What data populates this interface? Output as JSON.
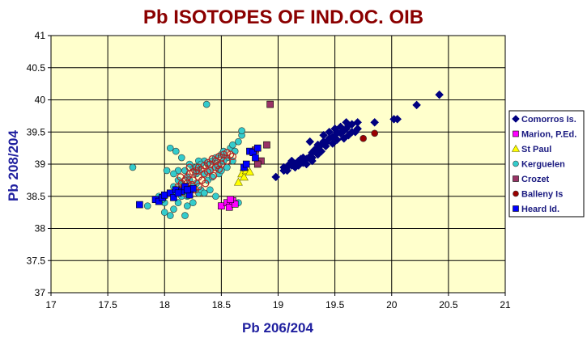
{
  "chart_data": {
    "type": "scatter",
    "title": "Pb ISOTOPES OF IND.OC. OIB",
    "xlabel": "Pb 206/204",
    "ylabel": "Pb 208/204",
    "xlim": [
      17,
      21
    ],
    "ylim": [
      37,
      41
    ],
    "x_ticks": [
      "17",
      "17.5",
      "18",
      "18.5",
      "19",
      "19.5",
      "20",
      "20.5",
      "21"
    ],
    "y_ticks": [
      "37",
      "37.5",
      "38",
      "38.5",
      "39",
      "39.5",
      "40",
      "40.5",
      "41"
    ],
    "grid": true,
    "legend_position": "right",
    "plot_background": "#ffffcc",
    "series": [
      {
        "name": "Comorros Is.",
        "marker": "diamond",
        "color": "#000080",
        "points": [
          [
            18.98,
            38.8
          ],
          [
            19.05,
            38.95
          ],
          [
            19.08,
            38.9
          ],
          [
            19.12,
            38.98
          ],
          [
            19.15,
            39.0
          ],
          [
            19.18,
            39.05
          ],
          [
            19.2,
            39.02
          ],
          [
            19.22,
            39.1
          ],
          [
            19.25,
            39.08
          ],
          [
            19.28,
            39.12
          ],
          [
            19.3,
            39.18
          ],
          [
            19.32,
            39.22
          ],
          [
            19.35,
            39.25
          ],
          [
            19.38,
            39.3
          ],
          [
            19.4,
            39.35
          ],
          [
            19.42,
            39.33
          ],
          [
            19.45,
            39.4
          ],
          [
            19.48,
            39.42
          ],
          [
            19.5,
            39.45
          ],
          [
            19.52,
            39.5
          ],
          [
            19.55,
            39.48
          ],
          [
            19.58,
            39.52
          ],
          [
            19.6,
            39.55
          ],
          [
            19.62,
            39.6
          ],
          [
            19.65,
            39.62
          ],
          [
            19.7,
            39.55
          ],
          [
            19.35,
            39.3
          ],
          [
            19.28,
            39.35
          ],
          [
            19.4,
            39.45
          ],
          [
            19.45,
            39.5
          ],
          [
            19.5,
            39.55
          ],
          [
            19.55,
            39.58
          ],
          [
            19.6,
            39.65
          ],
          [
            19.68,
            39.5
          ],
          [
            19.7,
            39.65
          ],
          [
            19.85,
            39.65
          ],
          [
            20.02,
            39.7
          ],
          [
            20.05,
            39.7
          ],
          [
            20.22,
            39.92
          ],
          [
            20.42,
            40.08
          ],
          [
            19.1,
            39.0
          ],
          [
            19.15,
            38.95
          ],
          [
            19.2,
            39.08
          ],
          [
            19.25,
            39.0
          ],
          [
            19.3,
            39.05
          ],
          [
            19.12,
            39.05
          ],
          [
            19.05,
            38.9
          ],
          [
            19.38,
            39.2
          ],
          [
            19.42,
            39.28
          ],
          [
            19.48,
            39.32
          ],
          [
            19.52,
            39.38
          ],
          [
            19.58,
            39.4
          ],
          [
            19.62,
            39.45
          ],
          [
            19.65,
            39.5
          ],
          [
            19.3,
            39.1
          ],
          [
            19.35,
            39.15
          ],
          [
            19.22,
            39.02
          ],
          [
            19.18,
            38.98
          ],
          [
            19.08,
            38.95
          ]
        ]
      },
      {
        "name": "Marion, P.Ed.",
        "marker": "square",
        "color": "#ff00ff",
        "points": [
          [
            18.5,
            38.35
          ],
          [
            18.55,
            38.4
          ],
          [
            18.57,
            38.33
          ],
          [
            18.6,
            38.43
          ],
          [
            18.62,
            38.38
          ],
          [
            18.58,
            38.45
          ]
        ]
      },
      {
        "name": "St Paul",
        "marker": "triangle",
        "color": "#ffff00",
        "points": [
          [
            18.65,
            38.72
          ],
          [
            18.68,
            38.85
          ],
          [
            18.7,
            38.8
          ],
          [
            18.72,
            38.9
          ],
          [
            18.75,
            38.88
          ],
          [
            18.7,
            38.95
          ]
        ]
      },
      {
        "name": "Kerguelen",
        "marker": "circle",
        "color": "#33cccc",
        "points": [
          [
            17.72,
            38.95
          ],
          [
            17.85,
            38.35
          ],
          [
            17.95,
            38.5
          ],
          [
            18.0,
            38.4
          ],
          [
            18.0,
            38.25
          ],
          [
            18.05,
            38.2
          ],
          [
            18.08,
            38.3
          ],
          [
            18.12,
            38.4
          ],
          [
            18.15,
            38.6
          ],
          [
            18.18,
            38.2
          ],
          [
            18.2,
            38.5
          ],
          [
            18.05,
            39.25
          ],
          [
            18.1,
            39.2
          ],
          [
            18.15,
            39.1
          ],
          [
            18.12,
            38.9
          ],
          [
            18.08,
            38.85
          ],
          [
            18.02,
            38.9
          ],
          [
            18.2,
            38.8
          ],
          [
            18.25,
            38.95
          ],
          [
            18.28,
            38.7
          ],
          [
            18.3,
            38.55
          ],
          [
            18.32,
            38.6
          ],
          [
            18.35,
            38.85
          ],
          [
            18.38,
            39.0
          ],
          [
            18.4,
            38.9
          ],
          [
            18.42,
            39.05
          ],
          [
            18.45,
            39.1
          ],
          [
            18.48,
            39.0
          ],
          [
            18.5,
            39.15
          ],
          [
            18.52,
            39.2
          ],
          [
            18.55,
            39.1
          ],
          [
            18.58,
            39.25
          ],
          [
            18.6,
            39.3
          ],
          [
            18.62,
            39.2
          ],
          [
            18.65,
            39.35
          ],
          [
            18.68,
            39.45
          ],
          [
            18.68,
            39.52
          ],
          [
            18.65,
            38.4
          ],
          [
            18.22,
            38.75
          ],
          [
            18.25,
            38.65
          ],
          [
            18.28,
            38.85
          ],
          [
            18.18,
            38.6
          ],
          [
            18.14,
            38.7
          ],
          [
            18.35,
            39.05
          ],
          [
            18.38,
            38.75
          ],
          [
            18.42,
            38.8
          ],
          [
            18.45,
            38.95
          ],
          [
            18.48,
            38.85
          ],
          [
            18.52,
            39.05
          ],
          [
            18.5,
            38.9
          ],
          [
            18.55,
            38.95
          ],
          [
            18.6,
            39.05
          ],
          [
            18.22,
            39.0
          ],
          [
            18.3,
            39.05
          ],
          [
            18.15,
            38.5
          ],
          [
            18.1,
            38.55
          ],
          [
            18.08,
            38.65
          ],
          [
            18.35,
            38.55
          ],
          [
            18.4,
            38.6
          ],
          [
            18.45,
            38.5
          ],
          [
            18.2,
            38.35
          ],
          [
            18.25,
            38.4
          ],
          [
            18.0,
            38.5
          ],
          [
            17.98,
            38.45
          ],
          [
            18.37,
            39.93
          ],
          [
            18.3,
            38.9
          ],
          [
            18.32,
            39.0
          ],
          [
            18.28,
            38.95
          ],
          [
            18.12,
            38.75
          ],
          [
            18.18,
            38.9
          ]
        ]
      },
      {
        "name": "Crozet",
        "marker": "square",
        "color": "#993366",
        "points": [
          [
            18.93,
            39.93
          ],
          [
            18.9,
            39.3
          ],
          [
            18.85,
            39.05
          ],
          [
            18.82,
            39.0
          ],
          [
            18.8,
            39.22
          ]
        ]
      },
      {
        "name": "Balleny Is",
        "marker": "circle",
        "color": "#990000",
        "points": [
          [
            19.75,
            39.4
          ],
          [
            19.85,
            39.48
          ]
        ]
      },
      {
        "name": "Heard Id.",
        "marker": "square",
        "color": "#0000ff",
        "points": [
          [
            17.78,
            38.37
          ],
          [
            17.92,
            38.45
          ],
          [
            17.95,
            38.42
          ],
          [
            17.98,
            38.48
          ],
          [
            18.0,
            38.52
          ],
          [
            18.05,
            38.55
          ],
          [
            18.1,
            38.6
          ],
          [
            18.15,
            38.58
          ],
          [
            18.18,
            38.65
          ],
          [
            18.22,
            38.52
          ],
          [
            18.25,
            38.62
          ],
          [
            18.08,
            38.48
          ],
          [
            18.12,
            38.55
          ],
          [
            18.2,
            38.6
          ],
          [
            18.75,
            39.2
          ],
          [
            18.78,
            39.18
          ],
          [
            18.8,
            39.1
          ],
          [
            18.82,
            39.25
          ],
          [
            18.7,
            38.95
          ],
          [
            18.72,
            39.0
          ]
        ]
      }
    ]
  },
  "overlay": {
    "color": "#b22222",
    "points": [
      [
        18.1,
        38.6
      ],
      [
        18.15,
        38.7
      ],
      [
        18.18,
        38.75
      ],
      [
        18.2,
        38.8
      ],
      [
        18.22,
        38.85
      ],
      [
        18.25,
        38.88
      ],
      [
        18.28,
        38.9
      ],
      [
        18.3,
        38.95
      ],
      [
        18.32,
        38.92
      ],
      [
        18.35,
        38.98
      ],
      [
        18.38,
        39.02
      ],
      [
        18.4,
        39.0
      ],
      [
        18.42,
        39.08
      ],
      [
        18.45,
        39.05
      ],
      [
        18.48,
        39.12
      ],
      [
        18.5,
        39.1
      ],
      [
        18.52,
        39.15
      ],
      [
        18.55,
        39.18
      ],
      [
        18.58,
        39.15
      ],
      [
        18.2,
        38.7
      ],
      [
        18.25,
        38.75
      ],
      [
        18.3,
        38.8
      ],
      [
        18.35,
        38.85
      ],
      [
        18.4,
        38.9
      ],
      [
        18.12,
        38.65
      ],
      [
        18.16,
        38.62
      ],
      [
        18.24,
        38.68
      ],
      [
        18.33,
        38.75
      ],
      [
        18.45,
        38.95
      ],
      [
        18.5,
        39.0
      ],
      [
        18.18,
        38.55
      ],
      [
        18.27,
        38.6
      ],
      [
        18.36,
        38.7
      ],
      [
        18.43,
        38.82
      ],
      [
        18.48,
        38.92
      ],
      [
        18.55,
        39.05
      ],
      [
        18.6,
        39.12
      ],
      [
        18.14,
        38.8
      ],
      [
        18.22,
        38.95
      ],
      [
        18.3,
        38.65
      ],
      [
        18.38,
        38.88
      ],
      [
        18.47,
        38.98
      ]
    ]
  }
}
